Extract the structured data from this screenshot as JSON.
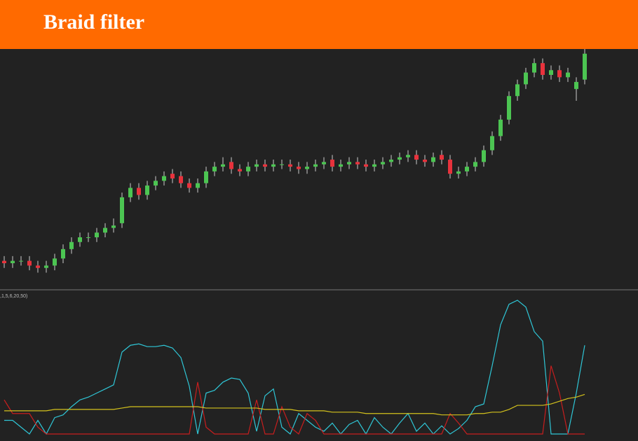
{
  "chart_data": [
    {
      "type": "candlestick",
      "title": "Braid filter",
      "up_color": "#4cc552",
      "down_color": "#e8323c",
      "ylim": [
        0,
        102
      ],
      "open": [
        12,
        11,
        12,
        12,
        10,
        9,
        10,
        13,
        17,
        20,
        22,
        22,
        24,
        26,
        28,
        39,
        43,
        40,
        44,
        46,
        49,
        48,
        45,
        43,
        45,
        50,
        52,
        54,
        51,
        50,
        52,
        53,
        52,
        53,
        53,
        52,
        51,
        52,
        53,
        55,
        52,
        53,
        54,
        53,
        52,
        53,
        54,
        55,
        56,
        57,
        55,
        54,
        57,
        55,
        49,
        50,
        52,
        54,
        59,
        65,
        72,
        82,
        87,
        92,
        96,
        91,
        93,
        90,
        85,
        89
      ],
      "high": [
        14,
        14,
        14,
        14,
        12,
        12,
        15,
        19,
        22,
        24,
        24,
        26,
        28,
        30,
        41,
        45,
        45,
        46,
        48,
        50,
        51,
        50,
        47,
        47,
        52,
        54,
        56,
        56,
        53,
        54,
        55,
        55,
        55,
        55,
        55,
        54,
        54,
        55,
        56,
        57,
        55,
        56,
        56,
        55,
        55,
        56,
        57,
        58,
        59,
        59,
        57,
        58,
        59,
        57,
        52,
        54,
        56,
        61,
        67,
        74,
        84,
        89,
        94,
        98,
        98,
        95,
        95,
        94,
        90,
        102
      ],
      "low": [
        9,
        9,
        10,
        8,
        7,
        7,
        8,
        11,
        15,
        18,
        20,
        20,
        22,
        24,
        26,
        37,
        38,
        38,
        42,
        44,
        45,
        43,
        41,
        41,
        43,
        48,
        50,
        49,
        48,
        48,
        50,
        50,
        50,
        51,
        50,
        49,
        49,
        50,
        51,
        50,
        50,
        51,
        51,
        50,
        50,
        51,
        52,
        53,
        54,
        53,
        52,
        52,
        53,
        47,
        47,
        48,
        50,
        52,
        57,
        63,
        70,
        80,
        85,
        90,
        89,
        89,
        88,
        88,
        80,
        87
      ],
      "close": [
        11,
        12,
        12,
        10,
        9,
        10,
        13,
        17,
        20,
        22,
        22,
        24,
        26,
        27,
        39,
        43,
        40,
        44,
        46,
        48,
        47,
        45,
        43,
        45,
        50,
        52,
        53,
        51,
        50,
        52,
        53,
        52,
        53,
        53,
        52,
        51,
        52,
        53,
        54,
        52,
        53,
        54,
        53,
        52,
        53,
        54,
        55,
        56,
        57,
        55,
        54,
        56,
        55,
        49,
        50,
        52,
        54,
        59,
        65,
        72,
        82,
        87,
        92,
        96,
        91,
        93,
        90,
        92,
        88,
        100
      ]
    },
    {
      "type": "line",
      "title": ",1,5,6,20,50)",
      "ylim": [
        0,
        100
      ],
      "series": [
        {
          "color": "#2fc6d6",
          "values": [
            10,
            10,
            5,
            0,
            10,
            0,
            12,
            14,
            20,
            25,
            27,
            30,
            33,
            36,
            60,
            65,
            66,
            64,
            64,
            65,
            63,
            56,
            35,
            0,
            30,
            32,
            38,
            41,
            40,
            30,
            2,
            28,
            33,
            5,
            0,
            15,
            10,
            5,
            2,
            8,
            0,
            7,
            10,
            0,
            12,
            5,
            0,
            8,
            15,
            2,
            8,
            0,
            6,
            0,
            4,
            10,
            20,
            22,
            50,
            80,
            95,
            98,
            93,
            75,
            68,
            0,
            0,
            0,
            30,
            65
          ]
        },
        {
          "color": "#c81e1e",
          "values": [
            25,
            15,
            15,
            15,
            5,
            0,
            0,
            0,
            0,
            0,
            0,
            0,
            0,
            0,
            0,
            0,
            0,
            0,
            0,
            0,
            0,
            0,
            0,
            38,
            5,
            0,
            0,
            0,
            0,
            0,
            25,
            0,
            0,
            20,
            5,
            0,
            15,
            10,
            0,
            0,
            0,
            0,
            0,
            0,
            0,
            0,
            0,
            0,
            0,
            0,
            0,
            0,
            0,
            15,
            8,
            0,
            0,
            0,
            0,
            0,
            0,
            0,
            0,
            0,
            0,
            50,
            30,
            0,
            0,
            0
          ]
        },
        {
          "color": "#d4c21c",
          "values": [
            17,
            17,
            17,
            17,
            17,
            17,
            18,
            18,
            18,
            18,
            18,
            18,
            18,
            18,
            19,
            20,
            20,
            20,
            20,
            20,
            20,
            20,
            20,
            20,
            19,
            19,
            19,
            19,
            19,
            19,
            19,
            18,
            18,
            18,
            18,
            17,
            17,
            17,
            17,
            16,
            16,
            16,
            16,
            15,
            15,
            15,
            15,
            15,
            15,
            15,
            15,
            15,
            14,
            14,
            14,
            14,
            15,
            15,
            16,
            16,
            18,
            21,
            21,
            21,
            21,
            22,
            24,
            26,
            27,
            29
          ]
        }
      ]
    }
  ]
}
